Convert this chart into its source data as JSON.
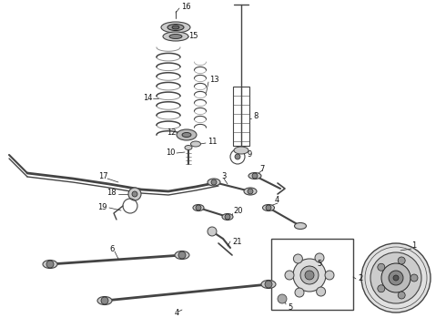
{
  "bg_color": "#ffffff",
  "lc": "#444444",
  "dc": "#222222",
  "fig_width": 4.9,
  "fig_height": 3.6,
  "dpi": 100
}
